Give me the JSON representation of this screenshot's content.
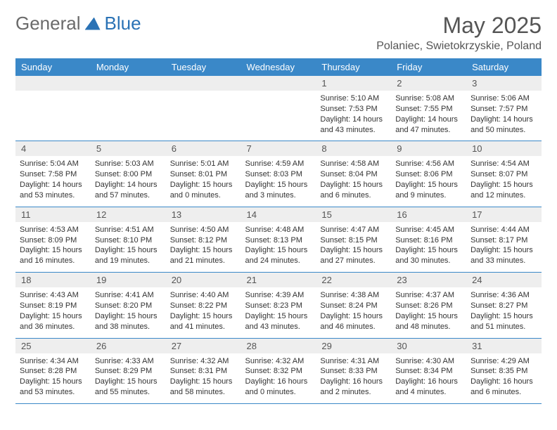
{
  "logo": {
    "word1": "General",
    "word2": "Blue"
  },
  "header": {
    "month_title": "May 2025",
    "location": "Polaniec, Swietokrzyskie, Poland"
  },
  "colors": {
    "header_bg": "#3a88c8",
    "header_text": "#ffffff",
    "daynum_bg": "#eeeeee",
    "rule": "#3a88c8",
    "logo_gray": "#6a6a6a",
    "logo_blue": "#2a72b5"
  },
  "weekdays": [
    "Sunday",
    "Monday",
    "Tuesday",
    "Wednesday",
    "Thursday",
    "Friday",
    "Saturday"
  ],
  "weeks": [
    [
      null,
      null,
      null,
      null,
      {
        "day": "1",
        "sunrise": "5:10 AM",
        "sunset": "7:53 PM",
        "daylight": "14 hours and 43 minutes."
      },
      {
        "day": "2",
        "sunrise": "5:08 AM",
        "sunset": "7:55 PM",
        "daylight": "14 hours and 47 minutes."
      },
      {
        "day": "3",
        "sunrise": "5:06 AM",
        "sunset": "7:57 PM",
        "daylight": "14 hours and 50 minutes."
      }
    ],
    [
      {
        "day": "4",
        "sunrise": "5:04 AM",
        "sunset": "7:58 PM",
        "daylight": "14 hours and 53 minutes."
      },
      {
        "day": "5",
        "sunrise": "5:03 AM",
        "sunset": "8:00 PM",
        "daylight": "14 hours and 57 minutes."
      },
      {
        "day": "6",
        "sunrise": "5:01 AM",
        "sunset": "8:01 PM",
        "daylight": "15 hours and 0 minutes."
      },
      {
        "day": "7",
        "sunrise": "4:59 AM",
        "sunset": "8:03 PM",
        "daylight": "15 hours and 3 minutes."
      },
      {
        "day": "8",
        "sunrise": "4:58 AM",
        "sunset": "8:04 PM",
        "daylight": "15 hours and 6 minutes."
      },
      {
        "day": "9",
        "sunrise": "4:56 AM",
        "sunset": "8:06 PM",
        "daylight": "15 hours and 9 minutes."
      },
      {
        "day": "10",
        "sunrise": "4:54 AM",
        "sunset": "8:07 PM",
        "daylight": "15 hours and 12 minutes."
      }
    ],
    [
      {
        "day": "11",
        "sunrise": "4:53 AM",
        "sunset": "8:09 PM",
        "daylight": "15 hours and 16 minutes."
      },
      {
        "day": "12",
        "sunrise": "4:51 AM",
        "sunset": "8:10 PM",
        "daylight": "15 hours and 19 minutes."
      },
      {
        "day": "13",
        "sunrise": "4:50 AM",
        "sunset": "8:12 PM",
        "daylight": "15 hours and 21 minutes."
      },
      {
        "day": "14",
        "sunrise": "4:48 AM",
        "sunset": "8:13 PM",
        "daylight": "15 hours and 24 minutes."
      },
      {
        "day": "15",
        "sunrise": "4:47 AM",
        "sunset": "8:15 PM",
        "daylight": "15 hours and 27 minutes."
      },
      {
        "day": "16",
        "sunrise": "4:45 AM",
        "sunset": "8:16 PM",
        "daylight": "15 hours and 30 minutes."
      },
      {
        "day": "17",
        "sunrise": "4:44 AM",
        "sunset": "8:17 PM",
        "daylight": "15 hours and 33 minutes."
      }
    ],
    [
      {
        "day": "18",
        "sunrise": "4:43 AM",
        "sunset": "8:19 PM",
        "daylight": "15 hours and 36 minutes."
      },
      {
        "day": "19",
        "sunrise": "4:41 AM",
        "sunset": "8:20 PM",
        "daylight": "15 hours and 38 minutes."
      },
      {
        "day": "20",
        "sunrise": "4:40 AM",
        "sunset": "8:22 PM",
        "daylight": "15 hours and 41 minutes."
      },
      {
        "day": "21",
        "sunrise": "4:39 AM",
        "sunset": "8:23 PM",
        "daylight": "15 hours and 43 minutes."
      },
      {
        "day": "22",
        "sunrise": "4:38 AM",
        "sunset": "8:24 PM",
        "daylight": "15 hours and 46 minutes."
      },
      {
        "day": "23",
        "sunrise": "4:37 AM",
        "sunset": "8:26 PM",
        "daylight": "15 hours and 48 minutes."
      },
      {
        "day": "24",
        "sunrise": "4:36 AM",
        "sunset": "8:27 PM",
        "daylight": "15 hours and 51 minutes."
      }
    ],
    [
      {
        "day": "25",
        "sunrise": "4:34 AM",
        "sunset": "8:28 PM",
        "daylight": "15 hours and 53 minutes."
      },
      {
        "day": "26",
        "sunrise": "4:33 AM",
        "sunset": "8:29 PM",
        "daylight": "15 hours and 55 minutes."
      },
      {
        "day": "27",
        "sunrise": "4:32 AM",
        "sunset": "8:31 PM",
        "daylight": "15 hours and 58 minutes."
      },
      {
        "day": "28",
        "sunrise": "4:32 AM",
        "sunset": "8:32 PM",
        "daylight": "16 hours and 0 minutes."
      },
      {
        "day": "29",
        "sunrise": "4:31 AM",
        "sunset": "8:33 PM",
        "daylight": "16 hours and 2 minutes."
      },
      {
        "day": "30",
        "sunrise": "4:30 AM",
        "sunset": "8:34 PM",
        "daylight": "16 hours and 4 minutes."
      },
      {
        "day": "31",
        "sunrise": "4:29 AM",
        "sunset": "8:35 PM",
        "daylight": "16 hours and 6 minutes."
      }
    ]
  ],
  "labels": {
    "sunrise": "Sunrise:",
    "sunset": "Sunset:",
    "daylight": "Daylight:"
  }
}
